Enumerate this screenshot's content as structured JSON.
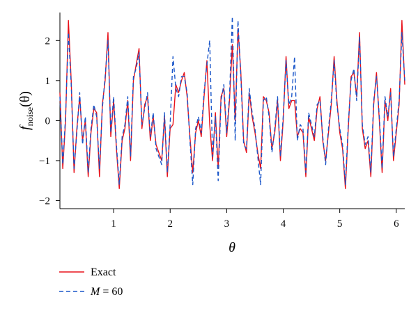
{
  "chart_data": {
    "type": "line",
    "title": "",
    "xlabel": "θ",
    "ylabel": {
      "main": "f",
      "sub": "noise",
      "arg": "(θ)"
    },
    "xlim": [
      0.05,
      6.15
    ],
    "ylim": [
      -2.2,
      2.7
    ],
    "xticks": [
      1,
      2,
      3,
      4,
      5,
      6
    ],
    "yticks": [
      -2,
      -1,
      0,
      1,
      2
    ],
    "grid": false,
    "legend_position": "bottom-left",
    "series": [
      {
        "name": "Exact",
        "color": "#e8121b",
        "style": "solid",
        "x": [
          0.05,
          0.1,
          0.15,
          0.2,
          0.25,
          0.3,
          0.35,
          0.4,
          0.45,
          0.5,
          0.55,
          0.6,
          0.65,
          0.7,
          0.75,
          0.8,
          0.85,
          0.9,
          0.95,
          1.0,
          1.05,
          1.1,
          1.15,
          1.2,
          1.25,
          1.3,
          1.35,
          1.4,
          1.45,
          1.5,
          1.55,
          1.6,
          1.65,
          1.7,
          1.75,
          1.8,
          1.85,
          1.9,
          1.95,
          2.0,
          2.05,
          2.1,
          2.15,
          2.2,
          2.25,
          2.3,
          2.35,
          2.4,
          2.45,
          2.5,
          2.55,
          2.6,
          2.65,
          2.7,
          2.75,
          2.8,
          2.85,
          2.9,
          2.95,
          3.0,
          3.05,
          3.1,
          3.15,
          3.2,
          3.25,
          3.3,
          3.35,
          3.4,
          3.45,
          3.5,
          3.55,
          3.6,
          3.65,
          3.7,
          3.75,
          3.8,
          3.85,
          3.9,
          3.95,
          4.0,
          4.05,
          4.1,
          4.15,
          4.2,
          4.25,
          4.3,
          4.35,
          4.4,
          4.45,
          4.5,
          4.55,
          4.6,
          4.65,
          4.7,
          4.75,
          4.8,
          4.85,
          4.9,
          4.95,
          5.0,
          5.05,
          5.1,
          5.15,
          5.2,
          5.25,
          5.3,
          5.35,
          5.4,
          5.45,
          5.5,
          5.55,
          5.6,
          5.65,
          5.7,
          5.75,
          5.8,
          5.85,
          5.9,
          5.95,
          6.0,
          6.05,
          6.1,
          6.15
        ],
        "y": [
          0.7,
          -1.2,
          0.0,
          2.5,
          1.0,
          -1.3,
          -0.2,
          0.6,
          -0.5,
          0.0,
          -1.4,
          -0.3,
          0.3,
          0.2,
          -1.4,
          0.4,
          1.0,
          2.2,
          -0.4,
          0.5,
          -0.7,
          -1.7,
          -0.5,
          -0.2,
          0.5,
          -1.0,
          1.0,
          1.4,
          1.8,
          -0.2,
          0.4,
          0.6,
          -0.5,
          0.1,
          -0.6,
          -0.8,
          -1.0,
          0.1,
          -1.4,
          -0.2,
          -0.1,
          0.9,
          0.7,
          1.0,
          1.2,
          0.6,
          -0.4,
          -1.3,
          -0.3,
          0.0,
          -0.4,
          0.6,
          1.5,
          -0.1,
          -1.0,
          0.2,
          -1.2,
          0.6,
          0.8,
          -0.4,
          0.5,
          1.9,
          0.0,
          2.3,
          1.2,
          -0.5,
          -0.8,
          0.7,
          0.1,
          -0.3,
          -0.8,
          -1.2,
          0.6,
          0.5,
          0.2,
          -0.7,
          -0.3,
          0.5,
          -1.0,
          0.0,
          1.6,
          0.3,
          0.5,
          0.5,
          -0.4,
          -0.2,
          -0.3,
          -1.4,
          0.1,
          -0.2,
          -0.5,
          0.3,
          0.6,
          -0.5,
          -1.0,
          -0.3,
          0.4,
          1.6,
          0.5,
          -0.3,
          -0.7,
          -1.7,
          -0.2,
          1.1,
          1.2,
          0.6,
          2.2,
          -0.2,
          -0.7,
          -0.5,
          -1.4,
          0.4,
          1.2,
          0.0,
          -1.3,
          0.5,
          0.0,
          0.8,
          -1.0,
          -0.3,
          0.4,
          2.5,
          0.9
        ]
      },
      {
        "name": "M = 60",
        "color": "#1a56c9",
        "style": "dashed",
        "x": [
          0.05,
          0.1,
          0.15,
          0.2,
          0.25,
          0.3,
          0.35,
          0.4,
          0.45,
          0.5,
          0.55,
          0.6,
          0.65,
          0.7,
          0.75,
          0.8,
          0.85,
          0.9,
          0.95,
          1.0,
          1.05,
          1.1,
          1.15,
          1.2,
          1.25,
          1.3,
          1.35,
          1.4,
          1.45,
          1.5,
          1.55,
          1.6,
          1.65,
          1.7,
          1.75,
          1.8,
          1.85,
          1.9,
          1.95,
          2.0,
          2.05,
          2.1,
          2.15,
          2.2,
          2.25,
          2.3,
          2.35,
          2.4,
          2.45,
          2.5,
          2.55,
          2.6,
          2.65,
          2.7,
          2.75,
          2.8,
          2.85,
          2.9,
          2.95,
          3.0,
          3.05,
          3.1,
          3.15,
          3.2,
          3.25,
          3.3,
          3.35,
          3.4,
          3.45,
          3.5,
          3.55,
          3.6,
          3.65,
          3.7,
          3.75,
          3.8,
          3.85,
          3.9,
          3.95,
          4.0,
          4.05,
          4.1,
          4.15,
          4.2,
          4.25,
          4.3,
          4.35,
          4.4,
          4.45,
          4.5,
          4.55,
          4.6,
          4.65,
          4.7,
          4.75,
          4.8,
          4.85,
          4.9,
          4.95,
          5.0,
          5.05,
          5.1,
          5.15,
          5.2,
          5.25,
          5.3,
          5.35,
          5.4,
          5.45,
          5.5,
          5.55,
          5.6,
          5.65,
          5.7,
          5.75,
          5.8,
          5.85,
          5.9,
          5.95,
          6.0,
          6.05,
          6.1,
          6.15
        ],
        "y": [
          0.6,
          -1.1,
          0.1,
          2.2,
          0.9,
          -1.2,
          -0.3,
          0.7,
          -0.6,
          0.1,
          -1.3,
          -0.2,
          0.4,
          0.1,
          -1.2,
          0.3,
          1.1,
          2.0,
          -0.3,
          0.6,
          -0.6,
          -1.6,
          -0.4,
          -0.1,
          0.6,
          -0.9,
          1.1,
          1.3,
          1.7,
          -0.1,
          0.3,
          0.7,
          -0.4,
          0.2,
          -0.7,
          -0.9,
          -1.1,
          0.2,
          -1.3,
          -0.1,
          1.6,
          0.8,
          0.6,
          1.1,
          1.1,
          0.7,
          -0.5,
          -1.6,
          -0.2,
          0.1,
          -0.3,
          0.7,
          1.4,
          2.0,
          -0.9,
          0.1,
          -1.5,
          0.5,
          0.9,
          -0.3,
          0.6,
          2.6,
          -0.5,
          2.5,
          1.1,
          -0.6,
          -0.7,
          0.8,
          0.2,
          -0.2,
          -0.9,
          -1.6,
          0.5,
          0.6,
          0.1,
          -0.8,
          -0.2,
          0.6,
          -0.9,
          0.1,
          1.5,
          0.4,
          0.6,
          1.6,
          -0.5,
          -0.1,
          -0.2,
          -1.3,
          0.2,
          -0.1,
          -0.4,
          0.4,
          0.5,
          -0.4,
          -1.1,
          -0.2,
          0.5,
          1.5,
          0.4,
          -0.2,
          -0.6,
          -1.6,
          -0.1,
          1.0,
          1.3,
          0.5,
          2.1,
          -0.1,
          -0.6,
          -0.4,
          -1.3,
          0.5,
          1.1,
          0.1,
          -1.2,
          0.6,
          0.1,
          0.7,
          -0.9,
          -0.2,
          0.5,
          2.2,
          1.0
        ]
      }
    ]
  },
  "legend": {
    "exact_label": "Exact",
    "m_label_var": "M",
    "m_label_rest": " = 60"
  }
}
